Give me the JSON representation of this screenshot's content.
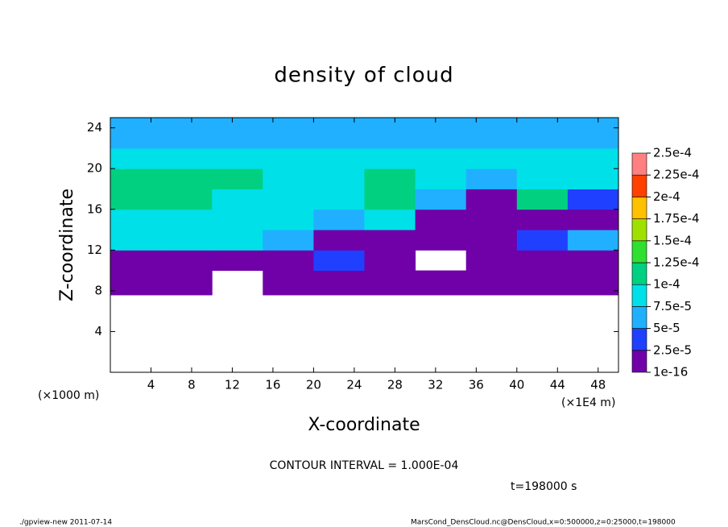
{
  "chart_data": {
    "type": "heatmap",
    "title": "density of cloud",
    "x_label": "X-coordinate",
    "y_label": "Z-coordinate",
    "x_unit": "(×1E4 m)",
    "y_unit": "(×1000 m)",
    "contour_note": "CONTOUR INTERVAL = 1.000E-04",
    "time_note": "t=198000 s",
    "footer_left": "./gpview-new  2011-07-14",
    "footer_right": "MarsCond_DensCloud.nc@DensCloud,x=0:500000,z=0:25000,t=198000",
    "xlim": [
      0,
      50
    ],
    "ylim": [
      0,
      25
    ],
    "xticks": [
      4,
      8,
      12,
      16,
      20,
      24,
      28,
      32,
      36,
      40,
      44,
      48
    ],
    "yticks": [
      4,
      8,
      12,
      16,
      20,
      24
    ],
    "x_edges": [
      0,
      5,
      10,
      15,
      20,
      25,
      30,
      35,
      40,
      45,
      50
    ],
    "y_edges": [
      7.6,
      10,
      12,
      14,
      16,
      18,
      20,
      22,
      25
    ],
    "values": [
      [
        2e-05,
        1e-05,
        0,
        2e-05,
        1e-05,
        2e-05,
        2e-05,
        1e-05,
        2e-05,
        2e-05
      ],
      [
        2e-05,
        2e-05,
        2e-05,
        2e-05,
        3e-05,
        2e-05,
        0,
        2e-05,
        2e-05,
        2e-05
      ],
      [
        8e-05,
        8e-05,
        8e-05,
        6e-05,
        2e-05,
        2e-05,
        2e-05,
        2e-05,
        3e-05,
        6e-05
      ],
      [
        9e-05,
        9e-05,
        9e-05,
        9e-05,
        6e-05,
        9e-05,
        2e-05,
        2e-05,
        2e-05,
        2e-05
      ],
      [
        0.00011,
        0.0001,
        9e-05,
        9e-05,
        8e-05,
        0.00011,
        7e-05,
        2e-05,
        0.000105,
        3e-05
      ],
      [
        0.000105,
        0.000105,
        0.00011,
        9e-05,
        8e-05,
        0.0001,
        8e-05,
        6e-05,
        9e-05,
        8e-05
      ],
      [
        9e-05,
        9e-05,
        9e-05,
        9e-05,
        8e-05,
        9e-05,
        9e-05,
        8e-05,
        8e-05,
        8e-05
      ],
      [
        7e-05,
        7e-05,
        7e-05,
        7e-05,
        7e-05,
        7e-05,
        7e-05,
        7e-05,
        7e-05,
        7e-05
      ]
    ],
    "levels": [
      {
        "value": 1e-16,
        "label": "1e-16"
      },
      {
        "value": 2.5e-05,
        "label": "2.5e-5"
      },
      {
        "value": 5e-05,
        "label": "5e-5"
      },
      {
        "value": 7.5e-05,
        "label": "7.5e-5"
      },
      {
        "value": 0.0001,
        "label": "1e-4"
      },
      {
        "value": 0.000125,
        "label": "1.25e-4"
      },
      {
        "value": 0.00015,
        "label": "1.5e-4"
      },
      {
        "value": 0.000175,
        "label": "1.75e-4"
      },
      {
        "value": 0.0002,
        "label": "2e-4"
      },
      {
        "value": 0.000225,
        "label": "2.25e-4"
      },
      {
        "value": 0.00025,
        "label": "2.5e-4"
      }
    ],
    "colors": [
      "#7000a8",
      "#2040ff",
      "#20b0ff",
      "#00e0e8",
      "#00d080",
      "#30e030",
      "#a0e000",
      "#ffc000",
      "#ff4000",
      "#ff8080"
    ]
  }
}
